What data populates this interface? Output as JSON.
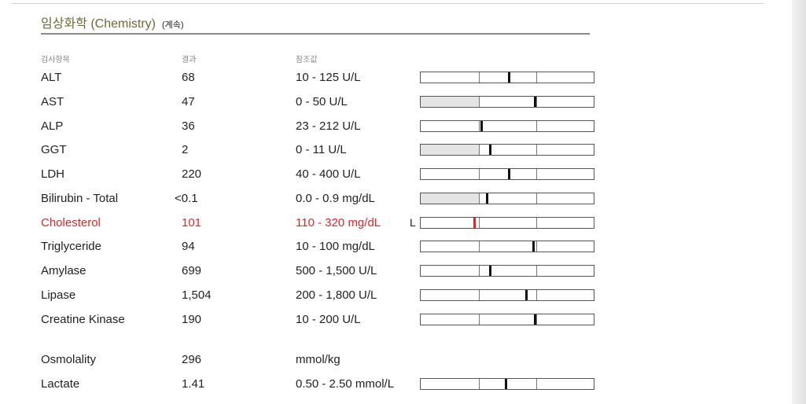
{
  "section": {
    "title": "임상화학 (Chemistry)",
    "subtitle": "(계속)"
  },
  "columns": {
    "item": "검사항목",
    "result": "결과",
    "reference": "참조값"
  },
  "colors": {
    "abnormal": "#e0262b",
    "title": "#6b6b3a",
    "bar_shade": "#e4e4e4"
  },
  "rows": [
    {
      "name": "ALT",
      "result": "68",
      "reference": "10 - 125 U/L",
      "flag": "",
      "has_bar": true,
      "marker": 0.51,
      "low_shade": false,
      "abnormal": false
    },
    {
      "name": "AST",
      "result": "47",
      "reference": "0 - 50 U/L",
      "flag": "",
      "has_bar": true,
      "marker": 0.66,
      "low_shade": true,
      "abnormal": false
    },
    {
      "name": "ALP",
      "result": "36",
      "reference": "23 - 212 U/L",
      "flag": "",
      "has_bar": true,
      "marker": 0.35,
      "low_shade": false,
      "abnormal": false
    },
    {
      "name": "GGT",
      "result": "2",
      "reference": "0 - 11 U/L",
      "flag": "",
      "has_bar": true,
      "marker": 0.4,
      "low_shade": true,
      "abnormal": false
    },
    {
      "name": "LDH",
      "result": "220",
      "reference": "40 - 400 U/L",
      "flag": "",
      "has_bar": true,
      "marker": 0.51,
      "low_shade": false,
      "abnormal": false
    },
    {
      "name": "Bilirubin - Total",
      "result": "<0.1",
      "reference": "0.0 - 0.9 mg/dL",
      "flag": "",
      "has_bar": true,
      "marker": 0.38,
      "low_shade": true,
      "abnormal": false
    },
    {
      "name": "Cholesterol",
      "result": "101",
      "reference": "110 - 320 mg/dL",
      "flag": "L",
      "has_bar": true,
      "marker": 0.31,
      "low_shade": false,
      "abnormal": true
    },
    {
      "name": "Triglyceride",
      "result": "94",
      "reference": "10 - 100 mg/dL",
      "flag": "",
      "has_bar": true,
      "marker": 0.65,
      "low_shade": false,
      "abnormal": false
    },
    {
      "name": "Amylase",
      "result": "699",
      "reference": "500 - 1,500 U/L",
      "flag": "",
      "has_bar": true,
      "marker": 0.4,
      "low_shade": false,
      "abnormal": false
    },
    {
      "name": "Lipase",
      "result": "1,504",
      "reference": "200 - 1,800 U/L",
      "flag": "",
      "has_bar": true,
      "marker": 0.61,
      "low_shade": false,
      "abnormal": false
    },
    {
      "name": "Creatine Kinase",
      "result": "190",
      "reference": "10 - 200 U/L",
      "flag": "",
      "has_bar": true,
      "marker": 0.66,
      "low_shade": false,
      "abnormal": false
    },
    {
      "name": "Osmolality",
      "result": "296",
      "reference": "mmol/kg",
      "flag": "",
      "has_bar": false,
      "marker": 0,
      "low_shade": false,
      "abnormal": false
    },
    {
      "name": "Lactate",
      "result": "1.41",
      "reference": "0.50 - 2.50 mmol/L",
      "flag": "",
      "has_bar": true,
      "marker": 0.49,
      "low_shade": false,
      "abnormal": false
    }
  ]
}
